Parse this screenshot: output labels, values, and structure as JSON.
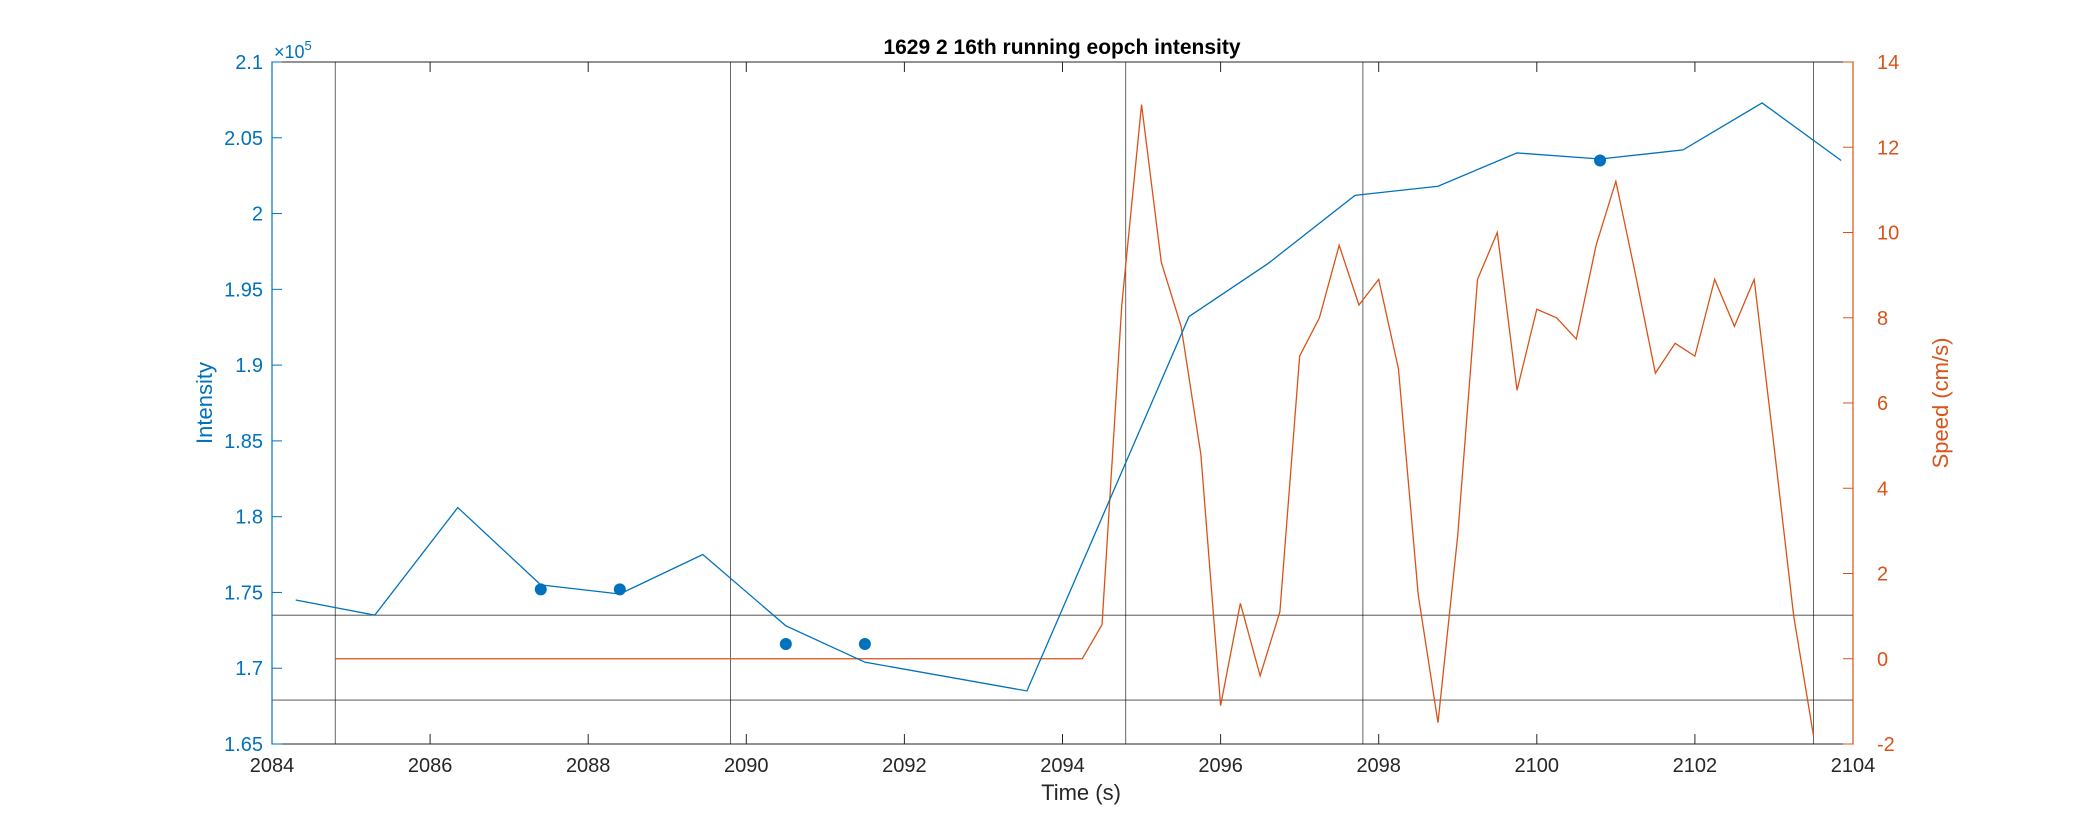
{
  "chart_data": {
    "type": "line",
    "title": "1629 2 16th running eopch intensity",
    "xlabel": "Time (s)",
    "ylabel_left": "Intensity",
    "ylabel_right": "Speed (cm/s)",
    "exponent_label": "×10",
    "exponent_power": "5",
    "xlim": [
      2084,
      2104
    ],
    "ylim_left": [
      1.65,
      2.1
    ],
    "ylim_right": [
      -2,
      14
    ],
    "x_ticks": [
      "2084",
      "2086",
      "2088",
      "2090",
      "2092",
      "2094",
      "2096",
      "2098",
      "2100",
      "2102",
      "2104"
    ],
    "x_tick_values": [
      2084,
      2086,
      2088,
      2090,
      2092,
      2094,
      2096,
      2098,
      2100,
      2102,
      2104
    ],
    "y_left_ticks": [
      "1.65",
      "1.7",
      "1.75",
      "1.8",
      "1.85",
      "1.9",
      "1.95",
      "2",
      "2.05",
      "2.1"
    ],
    "y_left_tick_values": [
      1.65,
      1.7,
      1.75,
      1.8,
      1.85,
      1.9,
      1.95,
      2.0,
      2.05,
      2.1
    ],
    "y_right_ticks": [
      "-2",
      "0",
      "2",
      "4",
      "6",
      "8",
      "10",
      "12",
      "14"
    ],
    "y_right_tick_values": [
      -2,
      0,
      2,
      4,
      6,
      8,
      10,
      12,
      14
    ],
    "grid": false,
    "colors": {
      "left": "#0072BD",
      "right": "#D95319",
      "ref": "#000000",
      "box": "#262626"
    },
    "intensity_line": {
      "x": [
        2084.3,
        2085.3,
        2086.35,
        2087.4,
        2088.4,
        2089.45,
        2090.5,
        2091.5,
        2093.55,
        2095.6,
        2096.6,
        2097.7,
        2098.75,
        2099.75,
        2100.8,
        2101.85,
        2102.85,
        2103.85
      ],
      "y": [
        1.745,
        1.735,
        1.806,
        1.755,
        1.749,
        1.775,
        1.728,
        1.704,
        1.685,
        1.932,
        1.967,
        2.012,
        2.018,
        2.04,
        2.036,
        2.042,
        2.073,
        2.035
      ]
    },
    "intensity_points": {
      "x": [
        2087.4,
        2088.4,
        2090.5,
        2091.5,
        2100.8
      ],
      "y": [
        1.752,
        1.752,
        1.716,
        1.716,
        2.035
      ]
    },
    "speed_line": {
      "x": [
        2084.8,
        2094.25,
        2094.5,
        2094.75,
        2095.0,
        2095.25,
        2095.5,
        2095.75,
        2096.0,
        2096.25,
        2096.5,
        2096.75,
        2097.0,
        2097.25,
        2097.5,
        2097.75,
        2098.0,
        2098.25,
        2098.5,
        2098.75,
        2099.0,
        2099.25,
        2099.5,
        2099.75,
        2100.0,
        2100.25,
        2100.5,
        2100.75,
        2101.0,
        2101.25,
        2101.5,
        2101.75,
        2102.0,
        2102.25,
        2102.5,
        2102.75,
        2103.0,
        2103.25,
        2103.5
      ],
      "y": [
        0,
        0,
        0.8,
        8.3,
        13.0,
        9.3,
        7.8,
        4.8,
        -1.1,
        1.3,
        -0.4,
        1.1,
        7.1,
        8.0,
        9.7,
        8.3,
        8.9,
        6.8,
        1.5,
        -1.5,
        2.9,
        8.9,
        10.0,
        6.3,
        8.2,
        8.0,
        7.5,
        9.7,
        11.2,
        9.0,
        6.7,
        7.4,
        7.1,
        8.9,
        7.8,
        8.9,
        5.0,
        1.0,
        -1.8
      ]
    },
    "vertical_ref_x": [
      2084.8,
      2089.8,
      2094.8,
      2097.8,
      2103.5
    ],
    "horizontal_ref_left_y": [
      1.735,
      1.679
    ]
  }
}
